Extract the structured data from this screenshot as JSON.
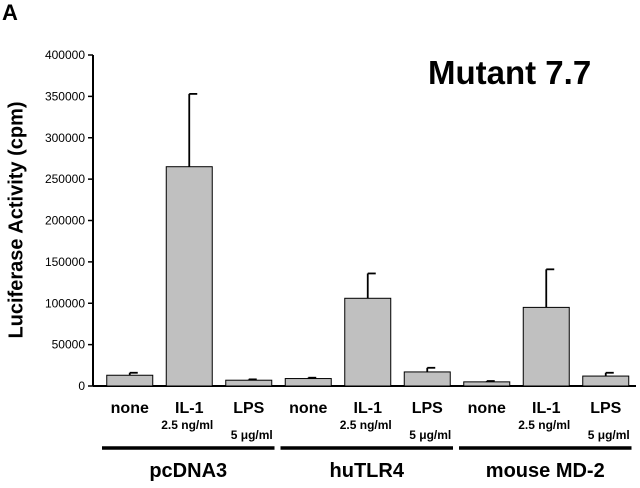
{
  "panel_label": "A",
  "chart_data": {
    "type": "bar",
    "title": "Mutant 7.7",
    "ylabel": "Luciferase Activity (cpm)",
    "xlabel": "",
    "ylim": [
      0,
      400000
    ],
    "yticks": [
      0,
      50000,
      100000,
      150000,
      200000,
      250000,
      300000,
      350000,
      400000
    ],
    "grid": false,
    "groups": [
      "pcDNA3",
      "huTLR4",
      "mouse MD-2"
    ],
    "categories": [
      {
        "label": "none",
        "sub": ""
      },
      {
        "label": "IL-1",
        "sub": "2.5 ng/ml"
      },
      {
        "label": "LPS",
        "sub": "5 μg/ml"
      },
      {
        "label": "none",
        "sub": ""
      },
      {
        "label": "IL-1",
        "sub": "2.5 ng/ml"
      },
      {
        "label": "LPS",
        "sub": "5 μg/ml"
      },
      {
        "label": "none",
        "sub": ""
      },
      {
        "label": "IL-1",
        "sub": "2.5 ng/ml"
      },
      {
        "label": "LPS",
        "sub": "5 μg/ml"
      }
    ],
    "values": [
      13000,
      265000,
      7000,
      9000,
      106000,
      17000,
      5000,
      95000,
      12000
    ],
    "errors": [
      3000,
      88000,
      1000,
      1000,
      30000,
      5000,
      1000,
      46000,
      4000
    ],
    "bar_color": "#c0c0c0"
  }
}
